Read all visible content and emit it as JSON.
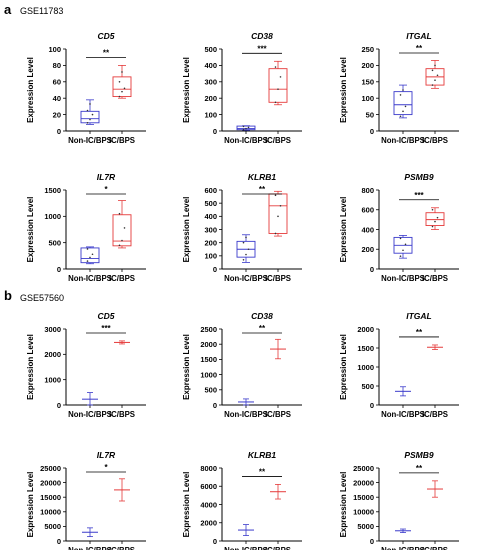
{
  "figure": {
    "panel_a": {
      "letter": "a",
      "dataset": "GSE11783"
    },
    "panel_b": {
      "letter": "b",
      "dataset": "GSE57560"
    }
  },
  "colors": {
    "control": "#3a3acb",
    "disease": "#e53a3a",
    "axis": "#000000"
  },
  "chart_data": [
    {
      "panel": "a",
      "type": "box",
      "title": "CD5",
      "ylabel": "Expression Level",
      "categories": [
        "Non-IC/BPS",
        "IC/BPS"
      ],
      "ylim": [
        0,
        100
      ],
      "yticks": [
        0,
        20,
        40,
        60,
        80,
        100
      ],
      "boxes": [
        {
          "min": 8,
          "q1": 10,
          "median": 15,
          "q3": 24,
          "max": 38,
          "points": [
            10,
            14,
            20,
            25,
            33
          ]
        },
        {
          "min": 40,
          "q1": 42,
          "median": 51,
          "q3": 66,
          "max": 80,
          "points": [
            42,
            48,
            52,
            60,
            72
          ]
        }
      ],
      "significance": "**"
    },
    {
      "panel": "a",
      "type": "box",
      "title": "CD38",
      "ylabel": "Expression Level",
      "categories": [
        "Non-IC/BPS",
        "IC/BPS"
      ],
      "ylim": [
        0,
        500
      ],
      "yticks": [
        0,
        100,
        200,
        300,
        400,
        500
      ],
      "boxes": [
        {
          "min": 5,
          "q1": 8,
          "median": 15,
          "q3": 30,
          "max": 32,
          "points": [
            8,
            15,
            22,
            28
          ]
        },
        {
          "min": 160,
          "q1": 175,
          "median": 255,
          "q3": 380,
          "max": 425,
          "points": [
            175,
            255,
            330,
            390
          ]
        }
      ],
      "significance": "***"
    },
    {
      "panel": "a",
      "type": "box",
      "title": "ITGAL",
      "ylabel": "Expression Level",
      "categories": [
        "Non-IC/BPS",
        "IC/BPS"
      ],
      "ylim": [
        0,
        250
      ],
      "yticks": [
        0,
        50,
        100,
        150,
        200,
        250
      ],
      "boxes": [
        {
          "min": 40,
          "q1": 50,
          "median": 80,
          "q3": 120,
          "max": 140,
          "points": [
            45,
            60,
            75,
            110,
            125
          ]
        },
        {
          "min": 130,
          "q1": 140,
          "median": 165,
          "q3": 190,
          "max": 215,
          "points": [
            140,
            155,
            170,
            185,
            200
          ]
        }
      ],
      "significance": "**"
    },
    {
      "panel": "a",
      "type": "box",
      "title": "IL7R",
      "ylabel": "Expression Level",
      "categories": [
        "Non-IC/BPS",
        "IC/BPS"
      ],
      "ylim": [
        0,
        1500
      ],
      "yticks": [
        0,
        500,
        1000,
        1500
      ],
      "boxes": [
        {
          "min": 100,
          "q1": 120,
          "median": 200,
          "q3": 400,
          "max": 420,
          "points": [
            150,
            220,
            280,
            380
          ]
        },
        {
          "min": 400,
          "q1": 440,
          "median": 530,
          "q3": 1030,
          "max": 1300,
          "points": [
            450,
            540,
            780,
            1050
          ]
        }
      ],
      "significance": "*"
    },
    {
      "panel": "a",
      "type": "box",
      "title": "KLRB1",
      "ylabel": "Expression Level",
      "categories": [
        "Non-IC/BPS",
        "IC/BPS"
      ],
      "ylim": [
        0,
        600
      ],
      "yticks": [
        0,
        100,
        200,
        300,
        400,
        500,
        600
      ],
      "boxes": [
        {
          "min": 50,
          "q1": 90,
          "median": 150,
          "q3": 210,
          "max": 260,
          "points": [
            70,
            110,
            150,
            200,
            240
          ]
        },
        {
          "min": 250,
          "q1": 270,
          "median": 480,
          "q3": 570,
          "max": 590,
          "points": [
            270,
            400,
            480,
            560
          ]
        }
      ],
      "significance": "**"
    },
    {
      "panel": "a",
      "type": "box",
      "title": "PSMB9",
      "ylabel": "Expression Level",
      "categories": [
        "Non-IC/BPS",
        "IC/BPS"
      ],
      "ylim": [
        0,
        800
      ],
      "yticks": [
        0,
        200,
        400,
        600,
        800
      ],
      "boxes": [
        {
          "min": 110,
          "q1": 160,
          "median": 240,
          "q3": 320,
          "max": 340,
          "points": [
            130,
            190,
            250,
            310
          ]
        },
        {
          "min": 400,
          "q1": 440,
          "median": 500,
          "q3": 570,
          "max": 620,
          "points": [
            430,
            480,
            520,
            600
          ]
        }
      ],
      "significance": "***"
    },
    {
      "panel": "b",
      "type": "mean_error",
      "title": "CD5",
      "ylabel": "Expression Level",
      "categories": [
        "Non-IC/BPS",
        "IC/BPS"
      ],
      "ylim": [
        0,
        3000
      ],
      "yticks": [
        0,
        1000,
        2000,
        3000
      ],
      "groups": [
        {
          "mean": 230,
          "err": 260
        },
        {
          "mean": 2470,
          "err": 60
        }
      ],
      "significance": "***"
    },
    {
      "panel": "b",
      "type": "mean_error",
      "title": "CD38",
      "ylabel": "Expression Level",
      "categories": [
        "Non-IC/BPS",
        "IC/BPS"
      ],
      "ylim": [
        0,
        2500
      ],
      "yticks": [
        0,
        500,
        1000,
        1500,
        2000,
        2500
      ],
      "groups": [
        {
          "mean": 100,
          "err": 100
        },
        {
          "mean": 1840,
          "err": 320
        }
      ],
      "significance": "**"
    },
    {
      "panel": "b",
      "type": "mean_error",
      "title": "ITGAL",
      "ylabel": "Expression Level",
      "categories": [
        "Non-IC/BPS",
        "IC/BPS"
      ],
      "ylim": [
        0,
        2000
      ],
      "yticks": [
        0,
        500,
        1000,
        1500,
        2000
      ],
      "groups": [
        {
          "mean": 360,
          "err": 120
        },
        {
          "mean": 1520,
          "err": 60
        }
      ],
      "significance": "**"
    },
    {
      "panel": "b",
      "type": "mean_error",
      "title": "IL7R",
      "ylabel": "Expression Level",
      "categories": [
        "Non-IC/BPS",
        "IC/BPS"
      ],
      "ylim": [
        0,
        25000
      ],
      "yticks": [
        0,
        5000,
        10000,
        15000,
        20000,
        25000
      ],
      "groups": [
        {
          "mean": 3000,
          "err": 1500
        },
        {
          "mean": 17500,
          "err": 3800
        }
      ],
      "significance": "*"
    },
    {
      "panel": "b",
      "type": "mean_error",
      "title": "KLRB1",
      "ylabel": "Expression Level",
      "categories": [
        "Non-IC/BPS",
        "IC/BPS"
      ],
      "ylim": [
        0,
        8000
      ],
      "yticks": [
        0,
        2000,
        4000,
        6000,
        8000
      ],
      "groups": [
        {
          "mean": 1200,
          "err": 600
        },
        {
          "mean": 5400,
          "err": 800
        }
      ],
      "significance": "**"
    },
    {
      "panel": "b",
      "type": "mean_error",
      "title": "PSMB9",
      "ylabel": "Expression Level",
      "categories": [
        "Non-IC/BPS",
        "IC/BPS"
      ],
      "ylim": [
        0,
        25000
      ],
      "yticks": [
        0,
        5000,
        10000,
        15000,
        20000,
        25000
      ],
      "groups": [
        {
          "mean": 3500,
          "err": 600
        },
        {
          "mean": 17800,
          "err": 2800
        }
      ],
      "significance": "**"
    }
  ]
}
